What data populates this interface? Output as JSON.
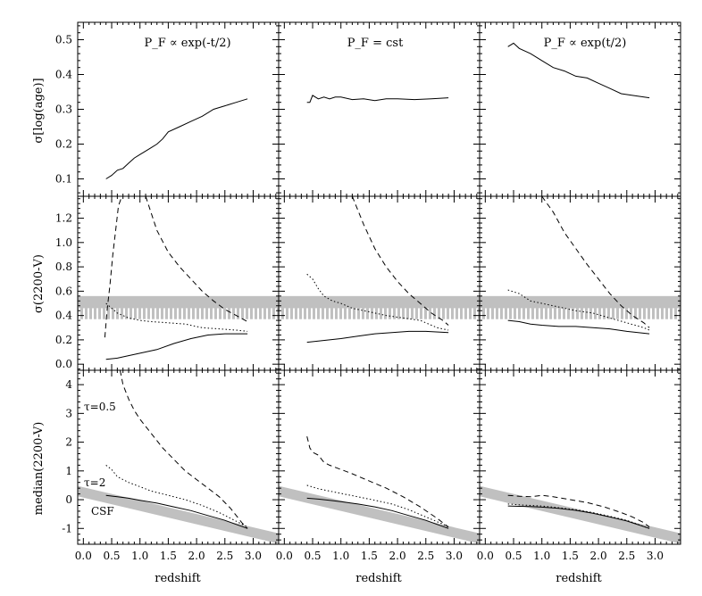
{
  "panel_titles": [
    "P_F ∝ exp(-t/2)",
    "P_F = cst",
    "P_F ∝ exp(t/2)"
  ],
  "row_ylabels": [
    "σ[log(age)]",
    "σ(2200-V)",
    "median(2200-V)"
  ],
  "xlabel": "redshift",
  "annotations": {
    "tau05": "τ=0.5",
    "tau2": "τ=2",
    "csf": "CSF"
  },
  "chart_data": [
    {
      "type": "line",
      "row": 0,
      "col": 0,
      "title": "P_F ∝ exp(-t/2)",
      "ylabel": "σ[log(age)]",
      "xlabel": "",
      "xlim": [
        -0.1,
        3.45
      ],
      "ylim": [
        0.05,
        0.55
      ],
      "yticks": [
        0.1,
        0.2,
        0.3,
        0.4,
        0.5
      ],
      "ytick_labels": [
        "0.1",
        "0.2",
        "0.3",
        "0.4",
        "0.5"
      ],
      "series": [
        {
          "style": "solid",
          "x": [
            0.4,
            0.5,
            0.6,
            0.7,
            0.8,
            0.9,
            1.0,
            1.1,
            1.2,
            1.3,
            1.4,
            1.5,
            1.7,
            1.9,
            2.1,
            2.3,
            2.5,
            2.7,
            2.9
          ],
          "y": [
            0.1,
            0.11,
            0.125,
            0.13,
            0.145,
            0.16,
            0.17,
            0.18,
            0.19,
            0.2,
            0.215,
            0.235,
            0.25,
            0.265,
            0.28,
            0.3,
            0.31,
            0.32,
            0.33
          ]
        }
      ]
    },
    {
      "type": "line",
      "row": 0,
      "col": 1,
      "title": "P_F = cst",
      "ylabel": "",
      "xlabel": "",
      "xlim": [
        -0.1,
        3.45
      ],
      "ylim": [
        0.05,
        0.55
      ],
      "series": [
        {
          "style": "solid",
          "x": [
            0.4,
            0.45,
            0.5,
            0.6,
            0.7,
            0.8,
            0.9,
            1.0,
            1.2,
            1.4,
            1.6,
            1.8,
            2.0,
            2.3,
            2.6,
            2.9
          ],
          "y": [
            0.32,
            0.32,
            0.34,
            0.33,
            0.335,
            0.33,
            0.335,
            0.335,
            0.328,
            0.33,
            0.325,
            0.33,
            0.33,
            0.328,
            0.33,
            0.333
          ]
        }
      ]
    },
    {
      "type": "line",
      "row": 0,
      "col": 2,
      "title": "P_F ∝ exp(t/2)",
      "ylabel": "",
      "xlabel": "",
      "xlim": [
        -0.1,
        3.45
      ],
      "ylim": [
        0.05,
        0.55
      ],
      "series": [
        {
          "style": "solid",
          "x": [
            0.4,
            0.5,
            0.6,
            0.8,
            1.0,
            1.2,
            1.4,
            1.6,
            1.8,
            2.0,
            2.2,
            2.4,
            2.6,
            2.9
          ],
          "y": [
            0.48,
            0.49,
            0.475,
            0.46,
            0.44,
            0.42,
            0.41,
            0.395,
            0.39,
            0.375,
            0.36,
            0.345,
            0.34,
            0.333
          ]
        }
      ]
    },
    {
      "type": "line",
      "row": 1,
      "col": 0,
      "title": "",
      "ylabel": "σ(2200-V)",
      "xlabel": "",
      "xlim": [
        -0.1,
        3.45
      ],
      "ylim": [
        -0.05,
        1.38
      ],
      "yticks": [
        0.0,
        0.2,
        0.4,
        0.6,
        0.8,
        1.0,
        1.2
      ],
      "ytick_labels": [
        "0.0",
        "0.2",
        "0.4",
        "0.6",
        "0.8",
        "1.0",
        "1.2"
      ],
      "band": {
        "solid": [
          0.46,
          0.56
        ],
        "hatched": [
          0.37,
          0.46
        ],
        "color": "#c0c0c0"
      },
      "series": [
        {
          "style": "dashed",
          "x": [
            0.38,
            0.42,
            0.47,
            0.52,
            0.57,
            0.62,
            0.68
          ],
          "y": [
            0.22,
            0.45,
            0.65,
            0.9,
            1.1,
            1.3,
            1.38
          ]
        },
        {
          "style": "dashed",
          "x": [
            1.1,
            1.3,
            1.5,
            1.7,
            1.9,
            2.1,
            2.3,
            2.5,
            2.7,
            2.9
          ],
          "y": [
            1.38,
            1.1,
            0.92,
            0.8,
            0.7,
            0.6,
            0.52,
            0.45,
            0.4,
            0.35
          ]
        },
        {
          "style": "dotted",
          "x": [
            0.4,
            0.6,
            0.8,
            1.0,
            1.2,
            1.5,
            1.8,
            2.1,
            2.4,
            2.7,
            2.9
          ],
          "y": [
            0.5,
            0.42,
            0.38,
            0.36,
            0.35,
            0.34,
            0.33,
            0.3,
            0.29,
            0.28,
            0.27
          ]
        },
        {
          "style": "solid",
          "x": [
            0.4,
            0.6,
            0.8,
            1.0,
            1.3,
            1.6,
            1.9,
            2.2,
            2.5,
            2.9
          ],
          "y": [
            0.04,
            0.05,
            0.07,
            0.09,
            0.12,
            0.17,
            0.21,
            0.24,
            0.25,
            0.25
          ]
        }
      ]
    },
    {
      "type": "line",
      "row": 1,
      "col": 1,
      "title": "",
      "ylabel": "",
      "xlabel": "",
      "xlim": [
        -0.1,
        3.45
      ],
      "ylim": [
        -0.05,
        1.38
      ],
      "band": {
        "solid": [
          0.46,
          0.56
        ],
        "hatched": [
          0.37,
          0.46
        ],
        "color": "#c0c0c0"
      },
      "series": [
        {
          "style": "dashed",
          "x": [
            1.2,
            1.4,
            1.6,
            1.8,
            2.0,
            2.2,
            2.4,
            2.6,
            2.8,
            2.9
          ],
          "y": [
            1.38,
            1.15,
            0.95,
            0.8,
            0.68,
            0.58,
            0.5,
            0.42,
            0.36,
            0.32
          ]
        },
        {
          "style": "dotted",
          "x": [
            0.4,
            0.5,
            0.6,
            0.7,
            0.85,
            1.0,
            1.2,
            1.5,
            1.8,
            2.1,
            2.4,
            2.7,
            2.9
          ],
          "y": [
            0.74,
            0.7,
            0.62,
            0.56,
            0.52,
            0.5,
            0.46,
            0.43,
            0.4,
            0.38,
            0.36,
            0.3,
            0.28
          ]
        },
        {
          "style": "solid",
          "x": [
            0.4,
            0.6,
            0.8,
            1.0,
            1.3,
            1.6,
            1.9,
            2.2,
            2.5,
            2.9
          ],
          "y": [
            0.18,
            0.19,
            0.2,
            0.21,
            0.23,
            0.25,
            0.26,
            0.27,
            0.27,
            0.26
          ]
        }
      ]
    },
    {
      "type": "line",
      "row": 1,
      "col": 2,
      "title": "",
      "ylabel": "",
      "xlabel": "",
      "xlim": [
        -0.1,
        3.45
      ],
      "ylim": [
        -0.05,
        1.38
      ],
      "band": {
        "solid": [
          0.46,
          0.56
        ],
        "hatched": [
          0.37,
          0.46
        ],
        "color": "#c0c0c0"
      },
      "series": [
        {
          "style": "dashed",
          "x": [
            1.0,
            1.2,
            1.4,
            1.6,
            1.8,
            2.0,
            2.2,
            2.4,
            2.6,
            2.8,
            2.9
          ],
          "y": [
            1.38,
            1.25,
            1.08,
            0.95,
            0.82,
            0.7,
            0.58,
            0.48,
            0.4,
            0.34,
            0.3
          ]
        },
        {
          "style": "dotted",
          "x": [
            0.4,
            0.6,
            0.8,
            1.0,
            1.3,
            1.6,
            1.9,
            2.2,
            2.5,
            2.8,
            2.9
          ],
          "y": [
            0.61,
            0.58,
            0.52,
            0.5,
            0.47,
            0.44,
            0.42,
            0.38,
            0.34,
            0.3,
            0.28
          ]
        },
        {
          "style": "solid",
          "x": [
            0.4,
            0.6,
            0.8,
            1.0,
            1.3,
            1.6,
            1.9,
            2.2,
            2.5,
            2.9
          ],
          "y": [
            0.36,
            0.35,
            0.33,
            0.32,
            0.31,
            0.31,
            0.3,
            0.29,
            0.27,
            0.25
          ]
        }
      ]
    },
    {
      "type": "line",
      "row": 2,
      "col": 0,
      "title": "",
      "ylabel": "median(2200-V)",
      "xlabel": "redshift",
      "xlim": [
        -0.1,
        3.45
      ],
      "ylim": [
        -1.55,
        4.5
      ],
      "yticks": [
        -1,
        0,
        1,
        2,
        3,
        4
      ],
      "ytick_labels": [
        "-1",
        "0",
        "1",
        "2",
        "3",
        "4"
      ],
      "xticks": [
        0.0,
        0.5,
        1.0,
        1.5,
        2.0,
        2.5,
        3.0
      ],
      "xtick_labels": [
        "0.0",
        "0.5",
        "1.0",
        "1.5",
        "2.0",
        "2.5",
        "3.0"
      ],
      "csf_band": {
        "x": [
          -0.1,
          3.45
        ],
        "center": [
          0.3,
          -1.35
        ],
        "halfwidth": 0.18,
        "color": "#c0c0c0"
      },
      "series": [
        {
          "style": "dashed",
          "x": [
            0.65,
            0.7,
            0.8,
            0.9,
            1.0,
            1.2,
            1.4,
            1.6,
            1.8,
            2.0,
            2.2,
            2.4,
            2.6,
            2.8,
            2.9
          ],
          "y": [
            4.5,
            4.0,
            3.5,
            3.1,
            2.8,
            2.3,
            1.8,
            1.4,
            1.0,
            0.7,
            0.4,
            0.1,
            -0.3,
            -0.8,
            -1.0
          ]
        },
        {
          "style": "dotted",
          "x": [
            0.4,
            0.5,
            0.6,
            0.8,
            1.0,
            1.2,
            1.5,
            1.8,
            2.1,
            2.4,
            2.7,
            2.9
          ],
          "y": [
            1.2,
            1.05,
            0.8,
            0.6,
            0.45,
            0.3,
            0.15,
            0.0,
            -0.2,
            -0.45,
            -0.75,
            -0.95
          ]
        },
        {
          "style": "solid",
          "x": [
            0.4,
            0.6,
            0.8,
            1.0,
            1.3,
            1.6,
            1.9,
            2.2,
            2.5,
            2.9
          ],
          "y": [
            0.15,
            0.1,
            0.05,
            -0.02,
            -0.12,
            -0.25,
            -0.38,
            -0.55,
            -0.72,
            -1.0
          ]
        }
      ]
    },
    {
      "type": "line",
      "row": 2,
      "col": 1,
      "title": "",
      "ylabel": "",
      "xlabel": "redshift",
      "xlim": [
        -0.1,
        3.45
      ],
      "ylim": [
        -1.55,
        4.5
      ],
      "xticks": [
        0.0,
        0.5,
        1.0,
        1.5,
        2.0,
        2.5,
        3.0
      ],
      "xtick_labels": [
        "0.0",
        "0.5",
        "1.0",
        "1.5",
        "2.0",
        "2.5",
        "3.0"
      ],
      "csf_band": {
        "x": [
          -0.1,
          3.45
        ],
        "center": [
          0.3,
          -1.35
        ],
        "halfwidth": 0.18,
        "color": "#c0c0c0"
      },
      "series": [
        {
          "style": "dashed",
          "x": [
            0.4,
            0.45,
            0.5,
            0.6,
            0.7,
            0.8,
            1.0,
            1.2,
            1.5,
            1.8,
            2.1,
            2.4,
            2.7,
            2.9
          ],
          "y": [
            2.2,
            1.8,
            1.65,
            1.55,
            1.3,
            1.2,
            1.05,
            0.9,
            0.65,
            0.4,
            0.1,
            -0.25,
            -0.65,
            -0.95
          ]
        },
        {
          "style": "dotted",
          "x": [
            0.4,
            0.6,
            0.8,
            1.0,
            1.3,
            1.6,
            1.9,
            2.2,
            2.5,
            2.8,
            2.9
          ],
          "y": [
            0.5,
            0.38,
            0.3,
            0.22,
            0.1,
            -0.02,
            -0.15,
            -0.35,
            -0.6,
            -0.85,
            -0.95
          ]
        },
        {
          "style": "solid",
          "x": [
            0.4,
            0.6,
            0.8,
            1.0,
            1.3,
            1.6,
            1.9,
            2.2,
            2.5,
            2.9
          ],
          "y": [
            0.05,
            0.02,
            -0.02,
            -0.07,
            -0.15,
            -0.25,
            -0.38,
            -0.55,
            -0.72,
            -1.0
          ]
        }
      ]
    },
    {
      "type": "line",
      "row": 2,
      "col": 2,
      "title": "",
      "ylabel": "",
      "xlabel": "redshift",
      "xlim": [
        -0.1,
        3.45
      ],
      "ylim": [
        -1.55,
        4.5
      ],
      "xticks": [
        0.0,
        0.5,
        1.0,
        1.5,
        2.0,
        2.5,
        3.0
      ],
      "xtick_labels": [
        "0.0",
        "0.5",
        "1.0",
        "1.5",
        "2.0",
        "2.5",
        "3.0"
      ],
      "csf_band": {
        "x": [
          -0.1,
          3.45
        ],
        "center": [
          0.3,
          -1.35
        ],
        "halfwidth": 0.18,
        "color": "#c0c0c0"
      },
      "series": [
        {
          "style": "dashed",
          "x": [
            0.4,
            0.6,
            0.8,
            1.0,
            1.2,
            1.5,
            1.8,
            2.1,
            2.4,
            2.6,
            2.8,
            2.9
          ],
          "y": [
            0.15,
            0.12,
            0.1,
            0.15,
            0.1,
            0.0,
            -0.1,
            -0.25,
            -0.45,
            -0.6,
            -0.8,
            -0.95
          ]
        },
        {
          "style": "dotted",
          "x": [
            0.4,
            0.6,
            0.8,
            1.0,
            1.3,
            1.6,
            1.9,
            2.2,
            2.5,
            2.9
          ],
          "y": [
            -0.15,
            -0.18,
            -0.2,
            -0.22,
            -0.28,
            -0.35,
            -0.45,
            -0.58,
            -0.72,
            -1.0
          ]
        },
        {
          "style": "solid",
          "x": [
            0.4,
            0.6,
            0.8,
            1.0,
            1.3,
            1.6,
            1.9,
            2.2,
            2.5,
            2.9
          ],
          "y": [
            -0.22,
            -0.23,
            -0.24,
            -0.26,
            -0.3,
            -0.37,
            -0.47,
            -0.6,
            -0.74,
            -1.0
          ]
        }
      ]
    }
  ]
}
